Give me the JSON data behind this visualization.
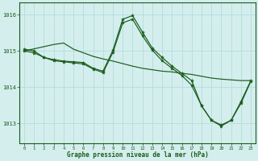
{
  "bg_color": "#d4eeee",
  "grid_color": "#b8dede",
  "line_color": "#1a5c1a",
  "title": "Graphe pression niveau de la mer (hPa)",
  "hours": [
    0,
    1,
    2,
    3,
    4,
    5,
    6,
    7,
    8,
    9,
    10,
    11,
    12,
    13,
    14,
    15,
    16,
    17,
    18,
    19,
    20,
    21,
    22,
    23
  ],
  "yticks": [
    1013,
    1014,
    1015,
    1016
  ],
  "ylim": [
    1012.45,
    1016.35
  ],
  "xlim": [
    -0.5,
    23.5
  ],
  "trend": [
    1015.0,
    1015.06,
    1015.12,
    1015.18,
    1015.22,
    1015.05,
    1014.95,
    1014.85,
    1014.78,
    1014.72,
    1014.65,
    1014.58,
    1014.52,
    1014.48,
    1014.44,
    1014.42,
    1014.38,
    1014.35,
    1014.3,
    1014.25,
    1014.22,
    1014.2,
    1014.18,
    1014.18
  ],
  "line2": [
    1015.05,
    1015.0,
    1014.82,
    1014.76,
    1014.72,
    1014.7,
    1014.68,
    1014.52,
    1014.44,
    1015.02,
    1015.88,
    1015.98,
    1015.52,
    1015.08,
    1014.82,
    1014.58,
    1014.38,
    1014.18,
    1013.48,
    1013.08,
    1012.92,
    1013.08,
    1013.6,
    1014.18
  ],
  "line3": [
    1015.0,
    1014.95,
    1014.82,
    1014.73,
    1014.7,
    1014.67,
    1014.64,
    1014.5,
    1014.4,
    1014.96,
    1015.78,
    1015.88,
    1015.42,
    1015.02,
    1014.73,
    1014.52,
    1014.32,
    1014.05,
    1013.48,
    1013.08,
    1012.95,
    1013.08,
    1013.55,
    1014.16
  ]
}
